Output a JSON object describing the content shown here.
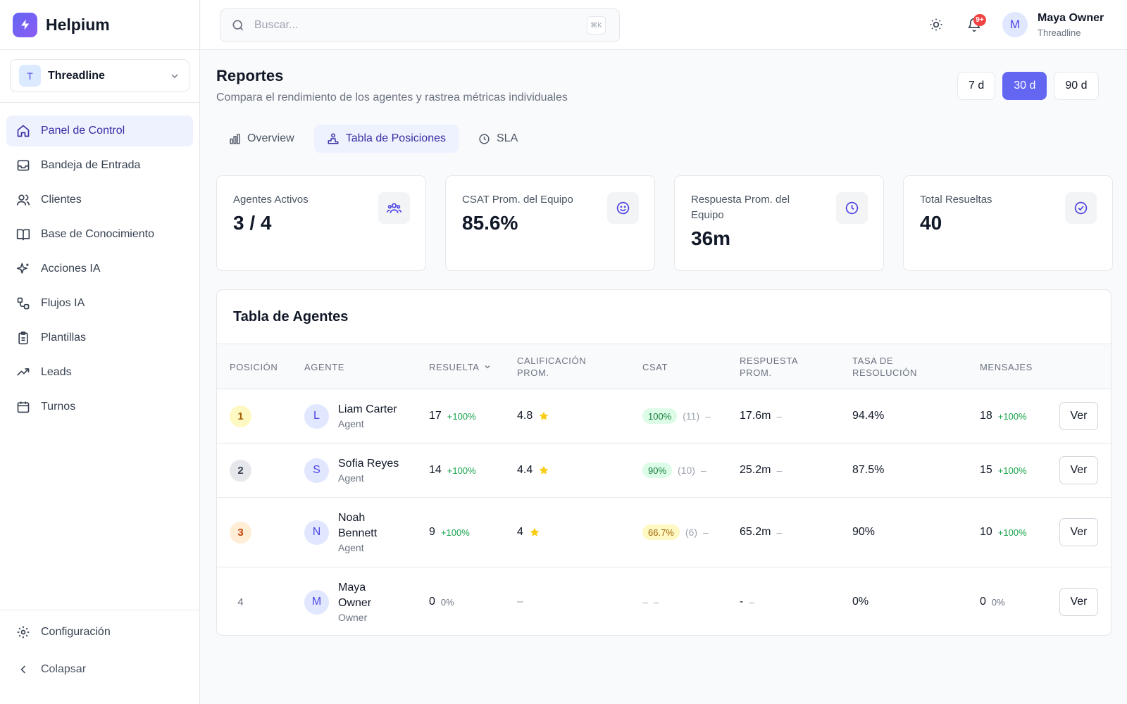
{
  "app": {
    "name": "Helpium"
  },
  "org": {
    "initial": "T",
    "name": "Threadline"
  },
  "sidebar": {
    "items": [
      {
        "label": "Panel de Control"
      },
      {
        "label": "Bandeja de Entrada"
      },
      {
        "label": "Clientes"
      },
      {
        "label": "Base de Conocimiento"
      },
      {
        "label": "Acciones IA"
      },
      {
        "label": "Flujos IA"
      },
      {
        "label": "Plantillas"
      },
      {
        "label": "Leads"
      },
      {
        "label": "Turnos"
      }
    ],
    "settings_label": "Configuración",
    "collapse_label": "Colapsar"
  },
  "topbar": {
    "search_placeholder": "Buscar...",
    "shortcut": "⌘K",
    "notification_count": "9+",
    "user": {
      "initial": "M",
      "name": "Maya Owner",
      "org": "Threadline"
    }
  },
  "page": {
    "title": "Reportes",
    "subtitle": "Compara el rendimiento de los agentes y rastrea métricas individuales",
    "ranges": [
      "7 d",
      "30 d",
      "90 d"
    ],
    "active_range": "30 d",
    "tabs": [
      {
        "label": "Overview",
        "icon": "bar-chart-icon"
      },
      {
        "label": "Tabla de Posiciones",
        "icon": "podium-icon"
      },
      {
        "label": "SLA",
        "icon": "clock-icon"
      }
    ],
    "active_tab": "Tabla de Posiciones"
  },
  "stats": [
    {
      "label": "Agentes Activos",
      "value": "3 / 4",
      "icon": "users-icon"
    },
    {
      "label": "CSAT Prom. del Equipo",
      "value": "85.6%",
      "icon": "smile-icon"
    },
    {
      "label": "Respuesta Prom. del Equipo",
      "value": "36m",
      "icon": "clock-icon"
    },
    {
      "label": "Total Resueltas",
      "value": "40",
      "icon": "check-circle-icon"
    }
  ],
  "table": {
    "title": "Tabla de Agentes",
    "columns": [
      "POSICIÓN",
      "AGENTE",
      "RESUELTA",
      "CALIFICACIÓN PROM.",
      "CSAT",
      "RESPUESTA PROM.",
      "TASA DE RESOLUCIÓN",
      "MENSAJES"
    ],
    "view_label": "Ver",
    "rows": [
      {
        "rank": "1",
        "initial": "L",
        "name": "Liam Carter",
        "role": "Agent",
        "resolved": "17",
        "resolved_delta": "+100%",
        "rating": "4.8",
        "csat": "100%",
        "csat_count": "(11)",
        "csat_trend": "–",
        "response": "17.6m",
        "response_trend": "–",
        "resolution_rate": "94.4%",
        "messages": "18",
        "messages_delta": "+100%"
      },
      {
        "rank": "2",
        "initial": "S",
        "name": "Sofia Reyes",
        "role": "Agent",
        "resolved": "14",
        "resolved_delta": "+100%",
        "rating": "4.4",
        "csat": "90%",
        "csat_count": "(10)",
        "csat_trend": "–",
        "response": "25.2m",
        "response_trend": "–",
        "resolution_rate": "87.5%",
        "messages": "15",
        "messages_delta": "+100%"
      },
      {
        "rank": "3",
        "initial": "N",
        "name": "Noah Bennett",
        "role": "Agent",
        "resolved": "9",
        "resolved_delta": "+100%",
        "rating": "4",
        "csat": "66.7%",
        "csat_count": "(6)",
        "csat_trend": "–",
        "response": "65.2m",
        "response_trend": "–",
        "resolution_rate": "90%",
        "messages": "10",
        "messages_delta": "+100%"
      },
      {
        "rank": "4",
        "initial": "M",
        "name": "Maya Owner",
        "role": "Owner",
        "resolved": "0",
        "resolved_delta": "0%",
        "rating": "–",
        "csat": "–",
        "csat_count": "",
        "csat_trend": "–",
        "response": "-",
        "response_trend": "–",
        "resolution_rate": "0%",
        "messages": "0",
        "messages_delta": "0%"
      }
    ]
  },
  "colors": {
    "accent": "#6366f1",
    "active_nav_bg": "#eef2ff",
    "positive": "#16a34a",
    "rank_gold_bg": "#fef9c3",
    "rank_silver_bg": "#e5e7eb",
    "rank_bronze_bg": "#ffedd5",
    "star": "#facc15"
  }
}
